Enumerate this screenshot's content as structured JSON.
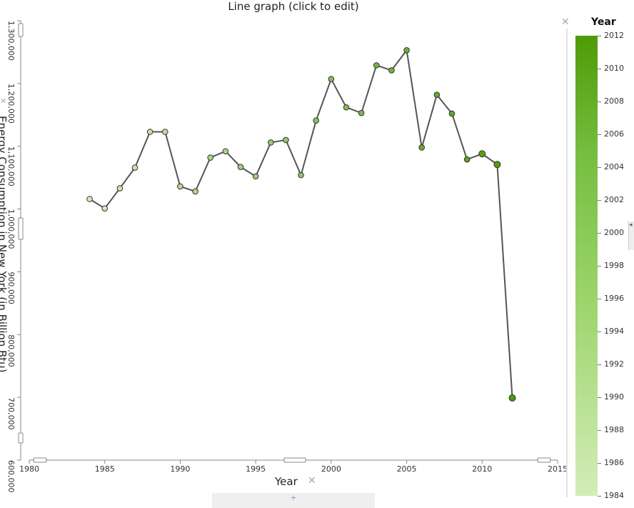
{
  "header": {
    "title": "Line graph (click to edit)"
  },
  "axes": {
    "x_label": "Year",
    "y_label": "Energy Consumption in New York (in Billion Btu)",
    "close_icon": "close-icon"
  },
  "legend": {
    "title": "Year",
    "ticks": [
      "2012",
      "2010",
      "2008",
      "2006",
      "2004",
      "2002",
      "2000",
      "1998",
      "1996",
      "1994",
      "1992",
      "1990",
      "1988",
      "1986",
      "1984"
    ],
    "color_low": "#d3edb8",
    "color_high": "#4e9a06"
  },
  "add_button": {
    "label": "+"
  },
  "chart_data": {
    "type": "line",
    "title": "Line graph (click to edit)",
    "xlabel": "Year",
    "ylabel": "Energy Consumption in New York (in Billion Btu)",
    "xlim": [
      1980,
      2015
    ],
    "ylim": [
      600000,
      1300000
    ],
    "x_ticks": [
      1980,
      1985,
      1990,
      1995,
      2000,
      2005,
      2010,
      2015
    ],
    "y_ticks": [
      600000,
      700000,
      800000,
      900000,
      1000000,
      1100000,
      1200000,
      1300000
    ],
    "x_tick_labels": [
      "1980",
      "1985",
      "1990",
      "1995",
      "2000",
      "2005",
      "2010",
      "2015"
    ],
    "y_tick_labels": [
      "600,000",
      "700,000",
      "800,000",
      "900,000",
      "1,000,000",
      "1,100,000",
      "1,200,000",
      "1,300,000"
    ],
    "grid": false,
    "line_color": "#555555",
    "series": [
      {
        "x": [
          1984,
          1985,
          1986,
          1987,
          1988,
          1989,
          1990,
          1991,
          1992,
          1993,
          1994,
          1995,
          1996,
          1997,
          1998,
          1999,
          2000,
          2001,
          2002,
          2003,
          2004,
          2005,
          2006,
          2007,
          2008,
          2009,
          2010,
          2011,
          2012
        ],
        "values": [
          1016000,
          1001000,
          1033000,
          1066000,
          1123000,
          1123000,
          1036000,
          1028000,
          1082000,
          1092000,
          1067000,
          1052000,
          1106000,
          1110000,
          1054000,
          1141000,
          1207000,
          1162000,
          1153000,
          1229000,
          1221000,
          1253000,
          1098000,
          1182000,
          1152000,
          1079000,
          1088000,
          1071000,
          699000
        ]
      }
    ]
  }
}
